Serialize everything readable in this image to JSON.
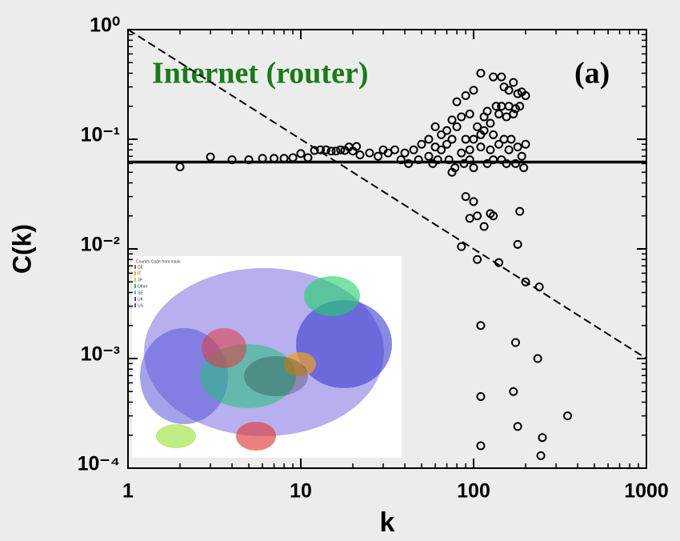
{
  "chart_data": {
    "type": "scatter",
    "title": "Internet (router)",
    "annotation": "(a)",
    "x_label": "k",
    "y_label": "C(k)",
    "log_x": true,
    "log_y": true,
    "color": "#000000",
    "title_color": "#1a7a1a",
    "xlim": [
      1,
      1000
    ],
    "ylim": [
      0.0001,
      1
    ],
    "xticks": [
      1,
      10,
      100,
      1000
    ],
    "yticks": [
      {
        "value": 1,
        "label": "10⁰"
      },
      {
        "value": 0.1,
        "label": "10⁻¹"
      },
      {
        "value": 0.01,
        "label": "10⁻²"
      },
      {
        "value": 0.001,
        "label": "10⁻³"
      },
      {
        "value": 0.0001,
        "label": "10⁻⁴"
      }
    ],
    "reference_line": 0.062,
    "fit_line": {
      "x": [
        1,
        1000
      ],
      "values": [
        1,
        0.001
      ]
    },
    "x": [
      2,
      3,
      4,
      5,
      6,
      7,
      8,
      9,
      10,
      11,
      12,
      13,
      14,
      15,
      16,
      17,
      18,
      19,
      20,
      21,
      110,
      130,
      145,
      150,
      160,
      170,
      180,
      190,
      200,
      100,
      90,
      80,
      75,
      85,
      95,
      105,
      120,
      135,
      140,
      125,
      115,
      145,
      160,
      155,
      170,
      175,
      185,
      60,
      65,
      70,
      75,
      80,
      90,
      100,
      110,
      115,
      130,
      140,
      150,
      165,
      180,
      200,
      50,
      55,
      60,
      65,
      70,
      85,
      95,
      110,
      125,
      145,
      160,
      190,
      40,
      45,
      30,
      32,
      35,
      28,
      25,
      22,
      38,
      42,
      48,
      55,
      58,
      62,
      72,
      78,
      88,
      95,
      100,
      120,
      130,
      155,
      175,
      195,
      75,
      90,
      100,
      95,
      105,
      125,
      130,
      115,
      185,
      180,
      85,
      105,
      140,
      200,
      240,
      110,
      175,
      235,
      110,
      170,
      180,
      250,
      350,
      110,
      245
    ],
    "values": [
      0.056,
      0.069,
      0.065,
      0.065,
      0.067,
      0.067,
      0.067,
      0.068,
      0.074,
      0.068,
      0.079,
      0.08,
      0.08,
      0.078,
      0.078,
      0.08,
      0.079,
      0.085,
      0.078,
      0.086,
      0.4,
      0.37,
      0.37,
      0.3,
      0.28,
      0.33,
      0.26,
      0.27,
      0.25,
      0.28,
      0.25,
      0.22,
      0.15,
      0.16,
      0.17,
      0.13,
      0.18,
      0.2,
      0.17,
      0.14,
      0.16,
      0.2,
      0.2,
      0.16,
      0.17,
      0.19,
      0.2,
      0.13,
      0.11,
      0.12,
      0.1,
      0.13,
      0.1,
      0.1,
      0.11,
      0.12,
      0.11,
      0.09,
      0.1,
      0.1,
      0.085,
      0.09,
      0.09,
      0.1,
      0.085,
      0.08,
      0.09,
      0.075,
      0.08,
      0.085,
      0.08,
      0.065,
      0.08,
      0.07,
      0.075,
      0.08,
      0.08,
      0.075,
      0.08,
      0.07,
      0.075,
      0.072,
      0.065,
      0.06,
      0.065,
      0.07,
      0.06,
      0.065,
      0.065,
      0.055,
      0.06,
      0.065,
      0.055,
      0.06,
      0.065,
      0.06,
      0.06,
      0.055,
      0.05,
      0.03,
      0.027,
      0.019,
      0.02,
      0.021,
      0.02,
      0.016,
      0.022,
      0.011,
      0.0105,
      0.008,
      0.0075,
      0.005,
      0.0045,
      0.002,
      0.0014,
      0.001,
      0.00045,
      0.0005,
      0.00024,
      0.00019,
      0.0003,
      0.00016,
      0.00013
    ],
    "inset_legend": {
      "title": "Country Code from mask",
      "items": [
        "DE",
        "IT",
        "JP",
        "Other",
        "SE",
        "UK",
        "US"
      ]
    }
  }
}
